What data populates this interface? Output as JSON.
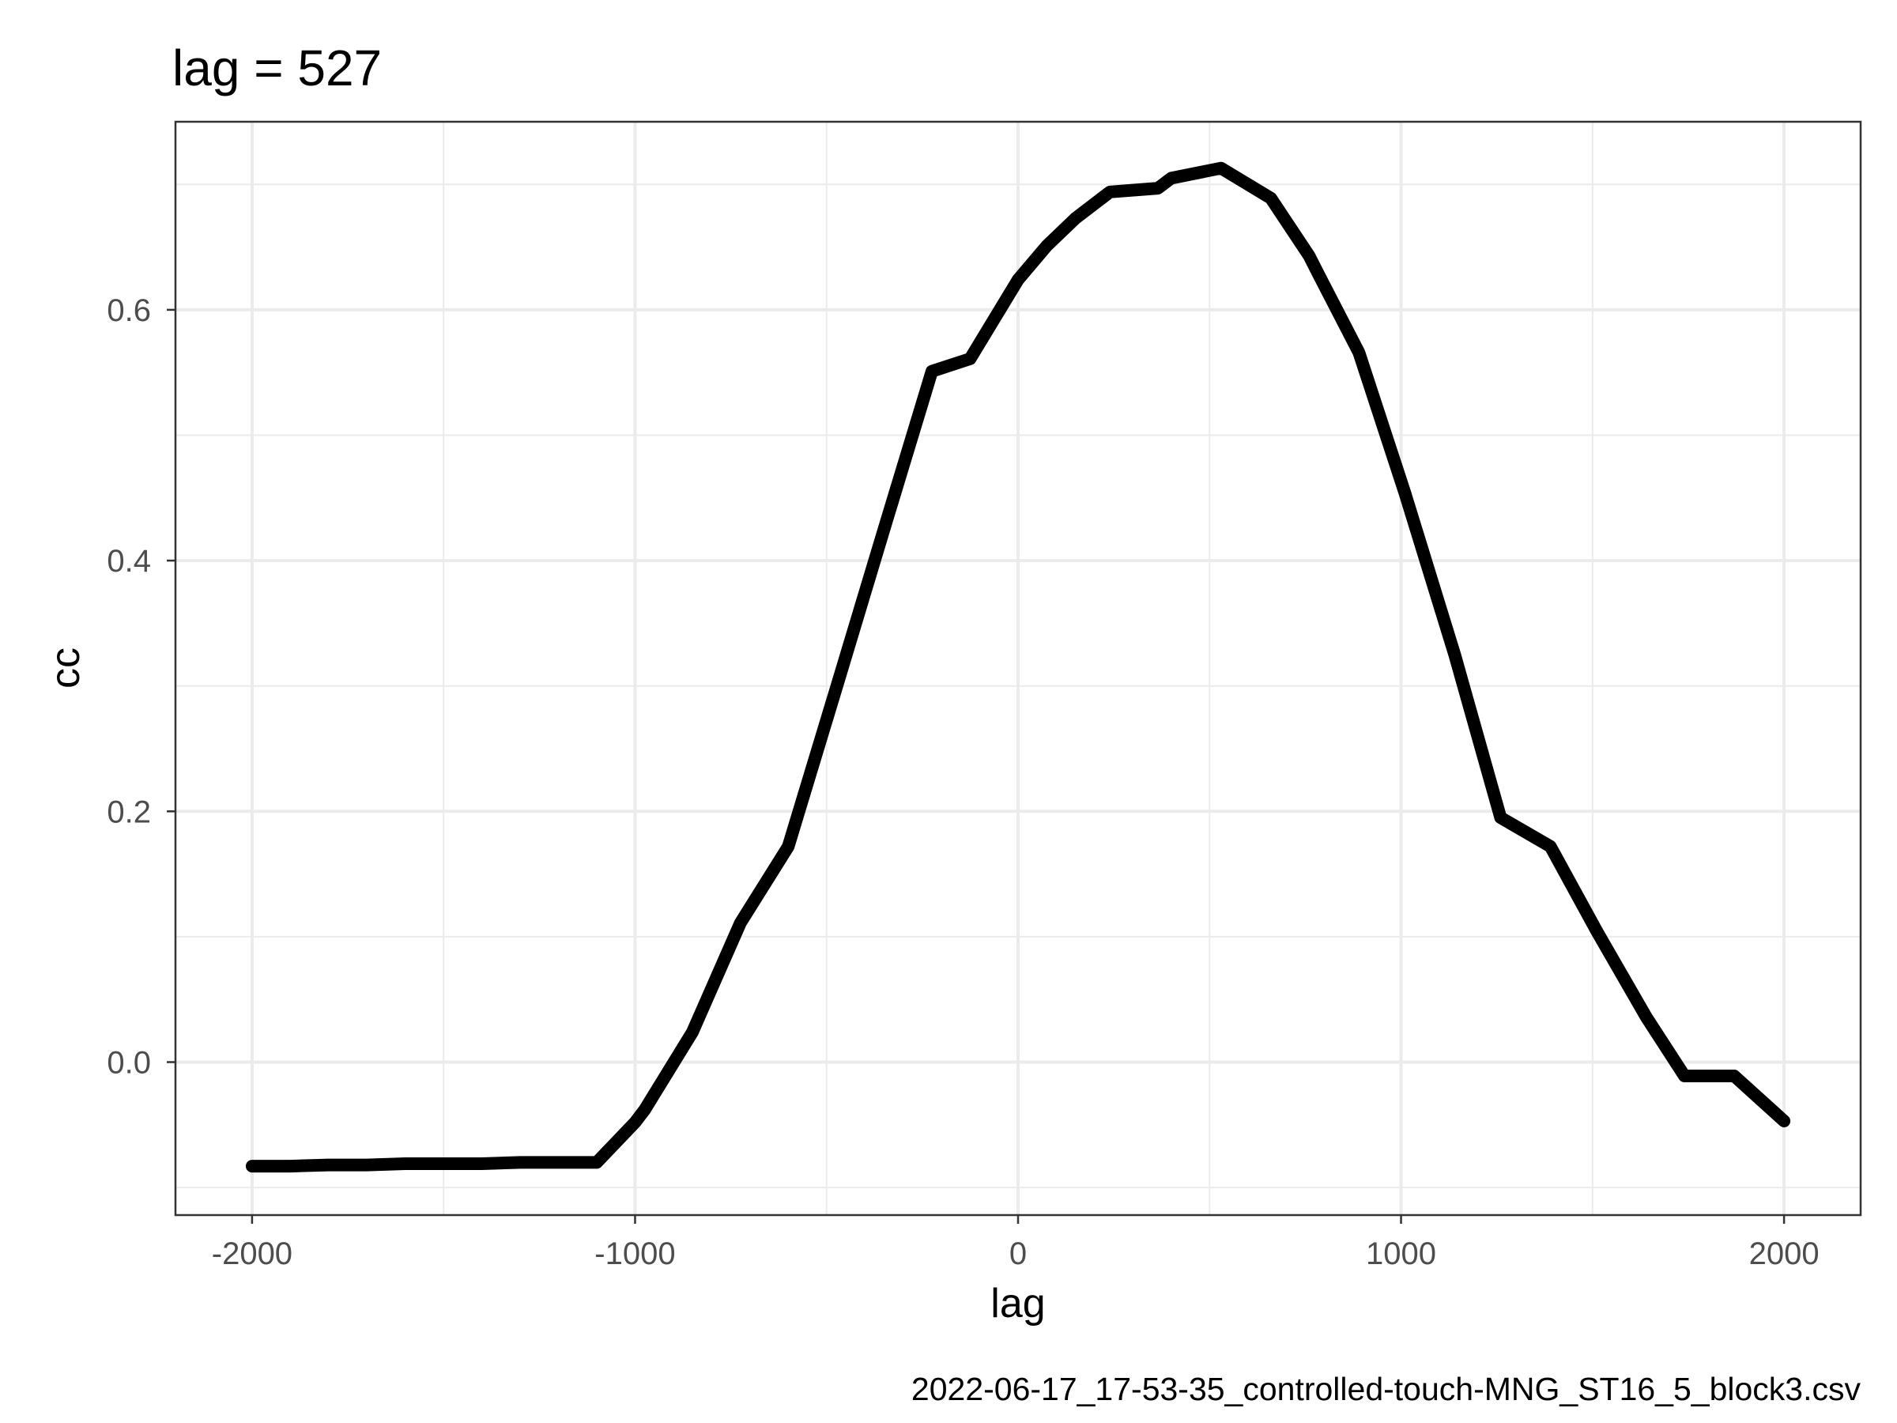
{
  "chart_data": {
    "type": "line",
    "title": "lag = 527",
    "xlabel": "lag",
    "ylabel": "cc",
    "caption": "2022-06-17_17-53-35_controlled-touch-MNG_ST16_5_block3.csv",
    "xlim": [
      -2200,
      2200
    ],
    "ylim": [
      -0.122,
      0.75
    ],
    "x_ticks": [
      -2000,
      -1000,
      0,
      1000,
      2000
    ],
    "x_tick_labels": [
      "-2000",
      "-1000",
      "0",
      "1000",
      "2000"
    ],
    "x_minor_ticks": [
      -1500,
      -500,
      500,
      1500
    ],
    "y_ticks": [
      0.0,
      0.2,
      0.4,
      0.6
    ],
    "y_tick_labels": [
      "0.0",
      "0.2",
      "0.4",
      "0.6"
    ],
    "y_minor_ticks": [
      -0.1,
      0.1,
      0.3,
      0.5,
      0.7
    ],
    "grid": true,
    "line_color": "#000000",
    "series": [
      {
        "x": [
          -2000,
          -1900,
          -1800,
          -1700,
          -1600,
          -1500,
          -1400,
          -1300,
          -1200,
          -1100,
          -1000,
          -975,
          -850,
          -725,
          -600,
          -475,
          -350,
          -225,
          -125,
          0,
          75,
          150,
          240,
          365,
          400,
          530,
          660,
          760,
          785,
          890,
          1010,
          1140,
          1260,
          1390,
          1510,
          1640,
          1740,
          1870,
          2000
        ],
        "y": [
          -0.083,
          -0.083,
          -0.082,
          -0.082,
          -0.081,
          -0.081,
          -0.081,
          -0.08,
          -0.08,
          -0.08,
          -0.048,
          -0.038,
          0.024,
          0.111,
          0.172,
          0.298,
          0.425,
          0.551,
          0.561,
          0.624,
          0.651,
          0.673,
          0.694,
          0.697,
          0.705,
          0.713,
          0.689,
          0.643,
          0.628,
          0.566,
          0.454,
          0.325,
          0.195,
          0.172,
          0.105,
          0.036,
          -0.011,
          -0.011,
          -0.047
        ]
      }
    ]
  }
}
